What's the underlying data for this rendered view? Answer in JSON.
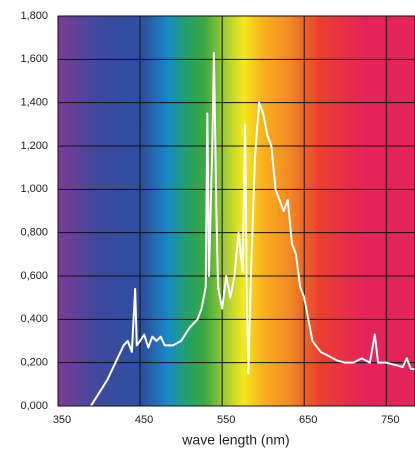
{
  "chart_data": {
    "type": "line",
    "x_label": "wave length (nm)",
    "x": [
      390,
      400,
      410,
      420,
      430,
      435,
      440,
      444,
      446,
      450,
      455,
      460,
      465,
      470,
      475,
      480,
      490,
      500,
      510,
      520,
      525,
      530,
      532,
      534,
      538,
      540,
      543,
      545,
      550,
      555,
      560,
      565,
      570,
      575,
      578,
      580,
      582,
      585,
      590,
      595,
      600,
      605,
      610,
      615,
      620,
      625,
      630,
      635,
      640,
      645,
      650,
      655,
      660,
      670,
      680,
      690,
      700,
      710,
      720,
      730,
      736,
      740,
      750,
      760,
      770,
      775,
      780,
      785
    ],
    "series": [
      {
        "color": "#ffffff",
        "values": [
          0.0,
          0.06,
          0.12,
          0.2,
          0.28,
          0.3,
          0.25,
          0.54,
          0.28,
          0.3,
          0.33,
          0.27,
          0.32,
          0.3,
          0.32,
          0.28,
          0.28,
          0.3,
          0.36,
          0.4,
          0.45,
          0.55,
          1.35,
          0.6,
          1.2,
          1.63,
          0.9,
          0.55,
          0.45,
          0.6,
          0.5,
          0.6,
          0.8,
          0.62,
          1.3,
          0.5,
          0.15,
          0.6,
          1.15,
          1.4,
          1.35,
          1.25,
          1.2,
          1.0,
          0.95,
          0.9,
          0.95,
          0.75,
          0.7,
          0.55,
          0.5,
          0.4,
          0.3,
          0.25,
          0.23,
          0.21,
          0.2,
          0.2,
          0.22,
          0.2,
          0.33,
          0.2,
          0.2,
          0.19,
          0.18,
          0.22,
          0.17,
          0.17
        ]
      }
    ],
    "xlim": [
      350,
      785
    ],
    "xticks": [
      350,
      450,
      550,
      650,
      750
    ],
    "ylim": [
      0,
      1.8
    ],
    "yticks": [
      {
        "value": 0,
        "label": "0,000"
      },
      {
        "value": 0.2,
        "label": "0,200"
      },
      {
        "value": 0.4,
        "label": "0,400"
      },
      {
        "value": 0.6,
        "label": "0,600"
      },
      {
        "value": 0.8,
        "label": "0,800"
      },
      {
        "value": 1.0,
        "label": "1,000"
      },
      {
        "value": 1.2,
        "label": "1,200"
      },
      {
        "value": 1.4,
        "label": "1,400"
      },
      {
        "value": 1.6,
        "label": "1,600"
      },
      {
        "value": 1.8,
        "label": "1,800"
      }
    ],
    "grid": true
  }
}
